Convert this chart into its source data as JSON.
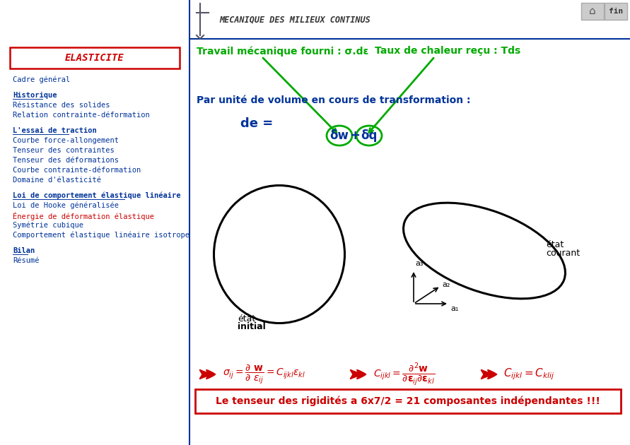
{
  "bg_color": "#ffffff",
  "header_color": "#003399",
  "title_text": "MECANIQUE DES MILIEUX CONTINUS",
  "fin_text": "fin",
  "elasticite_text": "ELASTICITE",
  "elasticite_color": "#cc0000",
  "menu_items": [
    {
      "text": "Cadre général",
      "color": "#003399",
      "underline": false,
      "bold": false,
      "gap_before": true
    },
    {
      "text": "Historique",
      "color": "#003399",
      "underline": true,
      "bold": true,
      "gap_before": true
    },
    {
      "text": "Résistance des solides",
      "color": "#003399",
      "underline": false,
      "bold": false,
      "gap_before": false
    },
    {
      "text": "Relation contrainte-déformation",
      "color": "#003399",
      "underline": false,
      "bold": false,
      "gap_before": false
    },
    {
      "text": "L'essai de traction",
      "color": "#003399",
      "underline": true,
      "bold": true,
      "gap_before": true
    },
    {
      "text": "Courbe force-allongement",
      "color": "#003399",
      "underline": false,
      "bold": false,
      "gap_before": false
    },
    {
      "text": "Tenseur des contraintes",
      "color": "#003399",
      "underline": false,
      "bold": false,
      "gap_before": false
    },
    {
      "text": "Tenseur des déformations",
      "color": "#003399",
      "underline": false,
      "bold": false,
      "gap_before": false
    },
    {
      "text": "Courbe contrainte-déformation",
      "color": "#003399",
      "underline": false,
      "bold": false,
      "gap_before": false
    },
    {
      "text": "Domaine d'élasticité",
      "color": "#003399",
      "underline": false,
      "bold": false,
      "gap_before": false
    },
    {
      "text": "Loi de comportement élastique linéaire",
      "color": "#003399",
      "underline": true,
      "bold": true,
      "gap_before": true
    },
    {
      "text": "Loi de Hooke généralisée",
      "color": "#003399",
      "underline": false,
      "bold": false,
      "gap_before": false
    },
    {
      "text": "Énergie de déformation élastique",
      "color": "#cc0000",
      "underline": false,
      "bold": false,
      "gap_before": false
    },
    {
      "text": "Symétrie cubique",
      "color": "#003399",
      "underline": false,
      "bold": false,
      "gap_before": false
    },
    {
      "text": "Comportement élastique linéaire isotrope",
      "color": "#003399",
      "underline": false,
      "bold": false,
      "gap_before": false
    },
    {
      "text": "Bilan",
      "color": "#003399",
      "underline": true,
      "bold": true,
      "gap_before": true
    },
    {
      "text": "Résumé",
      "color": "#003399",
      "underline": false,
      "bold": false,
      "gap_before": false
    }
  ],
  "top_green_text1": "Travail mécanique fourni : σ.dε",
  "top_green_text2": "Taux de chaleur reçu : Tds",
  "green_color": "#00aa00",
  "blue_text": "Par unité de volume en cours de transformation :",
  "blue_color": "#003399",
  "bottom_formula_color": "#cc0000",
  "box_color": "#cc0000",
  "bottom_box_text": "Le tenseur des rigidités a 6x7/2 = 21 composantes indépendantes !!!"
}
